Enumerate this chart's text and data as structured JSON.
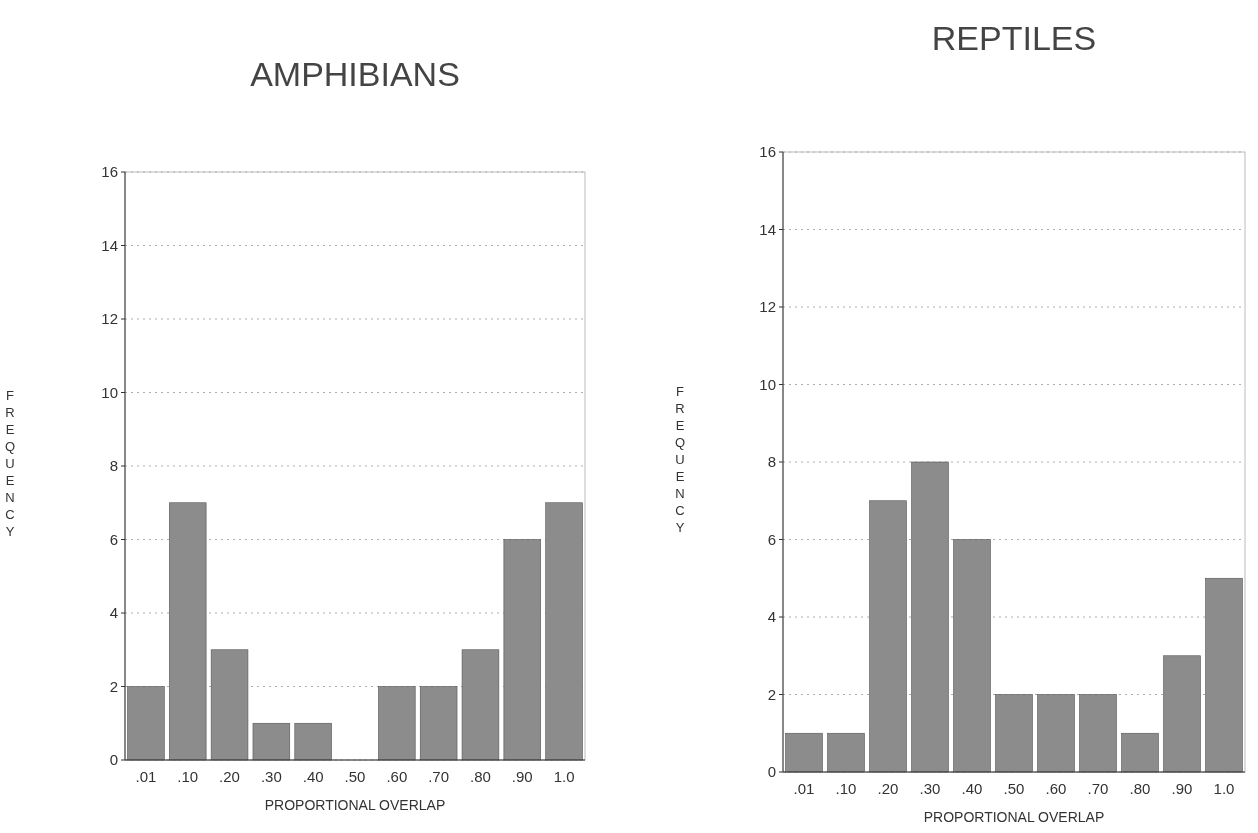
{
  "chart_data": [
    {
      "type": "bar",
      "title": "AMPHIBIANS",
      "xlabel": "PROPORTIONAL OVERLAP",
      "ylabel": "FREQUENCY",
      "categories": [
        ".01",
        ".10",
        ".20",
        ".30",
        ".40",
        ".50",
        ".60",
        ".70",
        ".80",
        ".90",
        "1.0"
      ],
      "values": [
        2,
        7,
        3,
        1,
        1,
        0,
        2,
        2,
        3,
        6,
        7
      ],
      "color": "#8c8c8c",
      "ylim": [
        0,
        16
      ],
      "yticks": [
        0,
        2,
        4,
        6,
        8,
        10,
        12,
        14,
        16
      ],
      "grid": "y"
    },
    {
      "type": "bar",
      "title": "REPTILES",
      "xlabel": "PROPORTIONAL OVERLAP",
      "ylabel": "FREQUENCY",
      "categories": [
        ".01",
        ".10",
        ".20",
        ".30",
        ".40",
        ".50",
        ".60",
        ".70",
        ".80",
        ".90",
        "1.0"
      ],
      "values": [
        1,
        1,
        7,
        8,
        6,
        2,
        2,
        2,
        1,
        3,
        5
      ],
      "color": "#8c8c8c",
      "ylim": [
        0,
        16
      ],
      "yticks": [
        0,
        2,
        4,
        6,
        8,
        10,
        12,
        14,
        16
      ],
      "grid": "y"
    }
  ]
}
